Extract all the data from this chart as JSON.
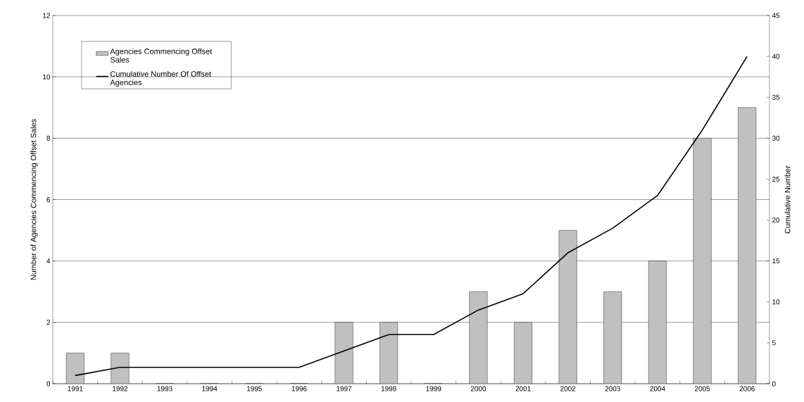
{
  "chart_data": {
    "type": "bar",
    "ylabel": "Number of Agencies Commencing Offset Sales",
    "y2label": "Cumulative Number",
    "categories": [
      "1991",
      "1992",
      "1993",
      "1994",
      "1995",
      "1996",
      "1997",
      "1998",
      "1999",
      "2000",
      "2001",
      "2002",
      "2003",
      "2004",
      "2005",
      "2006"
    ],
    "series": [
      {
        "name": "Agencies Commencing Offset Sales",
        "color": "#c0c0c0",
        "values": [
          1,
          1,
          0,
          0,
          0,
          0,
          2,
          2,
          0,
          3,
          2,
          5,
          3,
          4,
          8,
          9
        ]
      },
      {
        "name": "Cumulative Number Of Offset Agencies",
        "type": "line",
        "axis": "y2",
        "color": "#000000",
        "values": [
          1,
          2,
          2,
          2,
          2,
          2,
          4,
          6,
          6,
          9,
          11,
          16,
          19,
          23,
          31,
          40
        ]
      }
    ],
    "ylim": [
      0,
      12
    ],
    "yticks": [
      0,
      2,
      4,
      6,
      8,
      10,
      12
    ],
    "y2lim": [
      0,
      45
    ],
    "y2ticks": [
      0,
      5,
      10,
      15,
      20,
      25,
      30,
      35,
      40,
      45
    ],
    "grid": "y",
    "legend": "top left",
    "marker": "none"
  }
}
